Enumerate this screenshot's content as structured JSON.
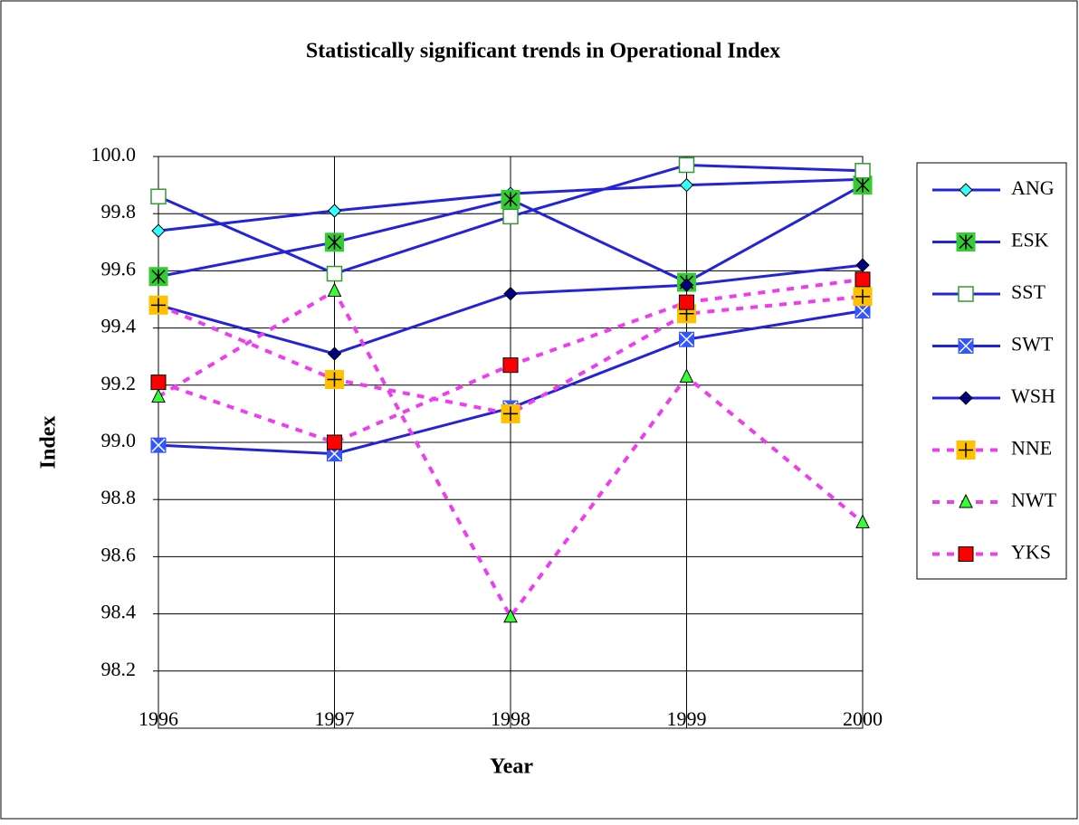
{
  "chart_data": {
    "type": "line",
    "title": "Statistically significant trends in Operational Index",
    "x_label": "Year",
    "y_label": "Index",
    "x": [
      1996,
      1997,
      1998,
      1999,
      2000
    ],
    "xlim": [
      1996,
      2000
    ],
    "xticks": [
      1996,
      1997,
      1998,
      1999,
      2000
    ],
    "ylim": [
      98.0,
      100.0
    ],
    "yticks": [
      {
        "value": 98.2,
        "label": "98.2"
      },
      {
        "value": 98.4,
        "label": "98.4"
      },
      {
        "value": 98.6,
        "label": "98.6"
      },
      {
        "value": 98.8,
        "label": "98.8"
      },
      {
        "value": 99.0,
        "label": "99.0"
      },
      {
        "value": 99.2,
        "label": "99.2"
      },
      {
        "value": 99.4,
        "label": "99.4"
      },
      {
        "value": 99.6,
        "label": "99.6"
      },
      {
        "value": 99.8,
        "label": "99.8"
      },
      {
        "value": 100.0,
        "label": "100.0"
      }
    ],
    "grid": true,
    "legend": "right",
    "series": [
      {
        "name": "ANG",
        "color": "#2323d8",
        "dash": false,
        "marker": "diamond",
        "marker_color": "#33ffff",
        "values": [
          99.74,
          99.81,
          99.87,
          99.9,
          99.92
        ]
      },
      {
        "name": "ESK",
        "color": "#2323d8",
        "dash": false,
        "marker": "star",
        "marker_color": "#33cc33",
        "values": [
          99.58,
          99.7,
          99.85,
          99.56,
          99.9
        ]
      },
      {
        "name": "SST",
        "color": "#2323d8",
        "dash": false,
        "marker": "open-square",
        "marker_color": "#339933",
        "values": [
          99.86,
          99.59,
          99.79,
          99.97,
          99.95
        ]
      },
      {
        "name": "SWT",
        "color": "#2323d8",
        "dash": false,
        "marker": "x-square",
        "marker_color": "#3355ff",
        "values": [
          98.99,
          98.96,
          99.12,
          99.36,
          99.46
        ]
      },
      {
        "name": "WSH",
        "color": "#2323d8",
        "dash": false,
        "marker": "diamond",
        "marker_color": "#000080",
        "values": [
          99.48,
          99.31,
          99.52,
          99.55,
          99.62
        ]
      },
      {
        "name": "NNE",
        "color": "#ee3dee",
        "dash": true,
        "marker": "plus-square",
        "marker_color": "#ffc000",
        "values": [
          99.48,
          99.22,
          99.1,
          99.45,
          99.51
        ]
      },
      {
        "name": "NWT",
        "color": "#ee3dee",
        "dash": true,
        "marker": "triangle",
        "marker_color": "#33ff33",
        "values": [
          99.16,
          99.53,
          98.39,
          99.23,
          98.72
        ]
      },
      {
        "name": "YKS",
        "color": "#ee3dee",
        "dash": true,
        "marker": "square",
        "marker_color": "#ff0000",
        "values": [
          99.21,
          99.0,
          99.27,
          99.49,
          99.57
        ]
      }
    ]
  }
}
